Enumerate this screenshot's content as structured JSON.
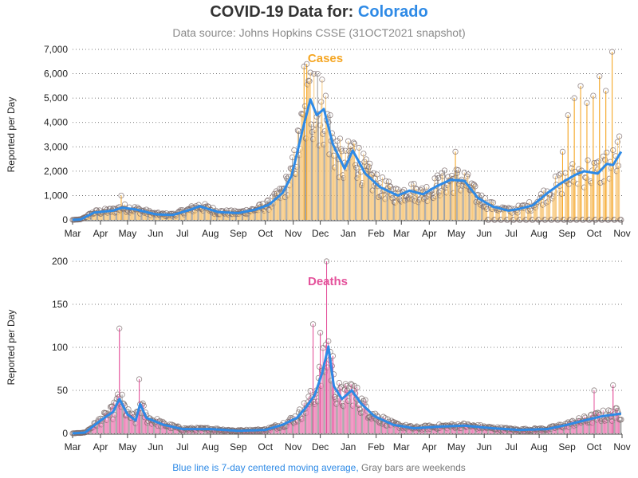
{
  "header": {
    "title_prefix": "COVID-19 Data for:",
    "location": "Colorado",
    "subtitle": "Data source: Johns Hopkins CSSE (31OCT2021 snapshot)"
  },
  "footnote": {
    "avg_note": "Blue line is 7-day centered moving average,",
    "weekend_note": "Gray bars are weekends"
  },
  "colors": {
    "cases": "#f5a623",
    "cases_bar": "#f8c77a",
    "deaths": "#e4529b",
    "deaths_bar": "#ee7fb6",
    "moving_average": "#2e8ae6",
    "weekend_bar": "#9a9a9a",
    "marker_edge": "#7a6a6a"
  },
  "chart_data": [
    {
      "type": "bar",
      "title": "Cases",
      "ylabel": "Reported per Day",
      "ylim": [
        0,
        7000
      ],
      "yticks": [
        0,
        1000,
        2000,
        3000,
        4000,
        5000,
        6000,
        7000
      ],
      "ytick_labels": [
        "0",
        "1,000",
        "2,000",
        "3,000",
        "4,000",
        "5,000",
        "6,000",
        "7,000"
      ],
      "xlim": [
        "2020-03-01",
        "2021-11-01"
      ],
      "xtick_labels": [
        "Mar",
        "Apr",
        "May",
        "Jun",
        "Jul",
        "Aug",
        "Sep",
        "Oct",
        "Nov",
        "Dec",
        "Jan",
        "Feb",
        "Mar",
        "Apr",
        "May",
        "Jun",
        "Jul",
        "Aug",
        "Sep",
        "Oct",
        "Nov"
      ],
      "grid": true,
      "moving_average_anchors": [
        [
          "2020-03-01",
          0
        ],
        [
          "2020-03-10",
          20
        ],
        [
          "2020-03-25",
          300
        ],
        [
          "2020-04-15",
          380
        ],
        [
          "2020-04-25",
          500
        ],
        [
          "2020-05-10",
          430
        ],
        [
          "2020-06-01",
          230
        ],
        [
          "2020-06-20",
          200
        ],
        [
          "2020-07-10",
          420
        ],
        [
          "2020-07-20",
          560
        ],
        [
          "2020-08-10",
          320
        ],
        [
          "2020-09-01",
          280
        ],
        [
          "2020-09-20",
          420
        ],
        [
          "2020-10-05",
          620
        ],
        [
          "2020-10-20",
          1100
        ],
        [
          "2020-10-30",
          1800
        ],
        [
          "2020-11-05",
          2700
        ],
        [
          "2020-11-12",
          3800
        ],
        [
          "2020-11-20",
          4950
        ],
        [
          "2020-11-27",
          4300
        ],
        [
          "2020-12-05",
          4550
        ],
        [
          "2020-12-15",
          3100
        ],
        [
          "2020-12-28",
          2100
        ],
        [
          "2021-01-06",
          2850
        ],
        [
          "2021-01-20",
          1900
        ],
        [
          "2021-02-05",
          1350
        ],
        [
          "2021-02-25",
          1000
        ],
        [
          "2021-03-10",
          1200
        ],
        [
          "2021-03-25",
          1050
        ],
        [
          "2021-04-10",
          1400
        ],
        [
          "2021-04-25",
          1650
        ],
        [
          "2021-05-10",
          1600
        ],
        [
          "2021-05-25",
          900
        ],
        [
          "2021-06-10",
          550
        ],
        [
          "2021-06-28",
          380
        ],
        [
          "2021-07-10",
          450
        ],
        [
          "2021-07-25",
          600
        ],
        [
          "2021-08-10",
          1100
        ],
        [
          "2021-08-25",
          1500
        ],
        [
          "2021-09-10",
          1850
        ],
        [
          "2021-09-20",
          2000
        ],
        [
          "2021-10-05",
          1900
        ],
        [
          "2021-10-15",
          2300
        ],
        [
          "2021-10-22",
          2250
        ],
        [
          "2021-10-31",
          2800
        ]
      ],
      "notable_points": [
        [
          "2020-04-24",
          1000
        ],
        [
          "2020-11-13",
          6300
        ],
        [
          "2020-11-16",
          6400
        ],
        [
          "2020-11-20",
          6050
        ],
        [
          "2020-11-24",
          6000
        ],
        [
          "2020-11-28",
          6000
        ],
        [
          "2021-04-30",
          2800
        ],
        [
          "2021-08-27",
          2800
        ],
        [
          "2021-09-02",
          4300
        ],
        [
          "2021-09-09",
          5000
        ],
        [
          "2021-09-16",
          5500
        ],
        [
          "2021-09-23",
          4800
        ],
        [
          "2021-09-30",
          5100
        ],
        [
          "2021-10-07",
          5900
        ],
        [
          "2021-10-14",
          5300
        ],
        [
          "2021-10-21",
          6900
        ]
      ]
    },
    {
      "type": "bar",
      "title": "Deaths",
      "ylabel": "Reported per Day",
      "ylim": [
        0,
        200
      ],
      "yticks": [
        0,
        50,
        100,
        150,
        200
      ],
      "ytick_labels": [
        "0",
        "50",
        "100",
        "150",
        "200"
      ],
      "xlim": [
        "2020-03-01",
        "2021-11-01"
      ],
      "xtick_labels": [
        "Mar",
        "Apr",
        "May",
        "Jun",
        "Jul",
        "Aug",
        "Sep",
        "Oct",
        "Nov",
        "Dec",
        "Jan",
        "Feb",
        "Mar",
        "Apr",
        "May",
        "Jun",
        "Jul",
        "Aug",
        "Sep",
        "Oct",
        "Nov"
      ],
      "grid": true,
      "moving_average_anchors": [
        [
          "2020-03-01",
          0
        ],
        [
          "2020-03-15",
          1
        ],
        [
          "2020-04-01",
          15
        ],
        [
          "2020-04-15",
          25
        ],
        [
          "2020-04-22",
          40
        ],
        [
          "2020-05-01",
          22
        ],
        [
          "2020-05-10",
          15
        ],
        [
          "2020-05-15",
          34
        ],
        [
          "2020-05-22",
          18
        ],
        [
          "2020-06-10",
          10
        ],
        [
          "2020-07-01",
          5
        ],
        [
          "2020-08-01",
          5
        ],
        [
          "2020-09-01",
          3
        ],
        [
          "2020-10-01",
          4
        ],
        [
          "2020-10-20",
          10
        ],
        [
          "2020-11-05",
          18
        ],
        [
          "2020-11-15",
          30
        ],
        [
          "2020-11-25",
          45
        ],
        [
          "2020-12-03",
          70
        ],
        [
          "2020-12-10",
          101
        ],
        [
          "2020-12-16",
          55
        ],
        [
          "2020-12-25",
          40
        ],
        [
          "2021-01-05",
          50
        ],
        [
          "2021-01-15",
          35
        ],
        [
          "2021-01-30",
          20
        ],
        [
          "2021-02-20",
          10
        ],
        [
          "2021-03-15",
          6
        ],
        [
          "2021-04-15",
          8
        ],
        [
          "2021-05-10",
          9
        ],
        [
          "2021-06-10",
          6
        ],
        [
          "2021-07-10",
          4
        ],
        [
          "2021-08-10",
          5
        ],
        [
          "2021-09-01",
          10
        ],
        [
          "2021-09-20",
          15
        ],
        [
          "2021-10-10",
          20
        ],
        [
          "2021-10-31",
          23
        ]
      ],
      "notable_points": [
        [
          "2020-04-22",
          122
        ],
        [
          "2020-05-14",
          63
        ],
        [
          "2020-11-23",
          127
        ],
        [
          "2020-12-01",
          117
        ],
        [
          "2020-12-08",
          200
        ],
        [
          "2020-12-15",
          90
        ],
        [
          "2021-10-01",
          50
        ],
        [
          "2021-10-22",
          56
        ]
      ]
    }
  ]
}
